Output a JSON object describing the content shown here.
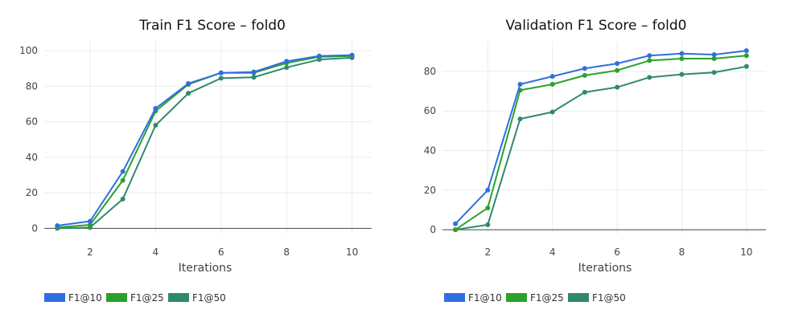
{
  "chart_data": [
    {
      "type": "line",
      "title": "Train F1 Score – fold0",
      "xlabel": "Iterations",
      "ylabel": "",
      "x": [
        1,
        2,
        3,
        4,
        5,
        6,
        7,
        8,
        9,
        10
      ],
      "xticks": [
        2,
        4,
        6,
        8,
        10
      ],
      "xlim": [
        0.6,
        10.6
      ],
      "ylim": [
        -3,
        105
      ],
      "yticks": [
        0,
        20,
        40,
        60,
        80,
        100
      ],
      "grid": true,
      "legend_position": "bottom-left",
      "series": [
        {
          "name": "F1@10",
          "color": "#2f6fe0",
          "values": [
            1.5,
            4,
            32,
            67.5,
            81.5,
            87.5,
            88,
            94,
            97,
            97.5
          ]
        },
        {
          "name": "F1@25",
          "color": "#2ca02c",
          "values": [
            0.5,
            2,
            27,
            66,
            81,
            87.5,
            87.5,
            93,
            96.5,
            97
          ]
        },
        {
          "name": "F1@50",
          "color": "#2e8b6a",
          "values": [
            0,
            0.5,
            16.5,
            58,
            76,
            84.5,
            85,
            90.5,
            95,
            96
          ]
        }
      ]
    },
    {
      "type": "line",
      "title": "Validation F1 Score – fold0",
      "xlabel": "Iterations",
      "ylabel": "",
      "x": [
        1,
        2,
        3,
        4,
        5,
        6,
        7,
        8,
        9,
        10
      ],
      "xticks": [
        2,
        4,
        6,
        8,
        10
      ],
      "xlim": [
        0.6,
        10.6
      ],
      "ylim": [
        -2,
        95
      ],
      "yticks": [
        0,
        20,
        40,
        60,
        80
      ],
      "grid": true,
      "legend_position": "bottom-left",
      "series": [
        {
          "name": "F1@10",
          "color": "#2f6fe0",
          "values": [
            3,
            20,
            73.5,
            77.5,
            81.5,
            84,
            88,
            89,
            88.5,
            90.5
          ]
        },
        {
          "name": "F1@25",
          "color": "#2ca02c",
          "values": [
            0,
            11,
            70.5,
            73.5,
            78,
            80.5,
            85.5,
            86.5,
            86.5,
            88
          ]
        },
        {
          "name": "F1@50",
          "color": "#2e8b6a",
          "values": [
            0,
            2.5,
            56,
            59.5,
            69.5,
            72,
            77,
            78.5,
            79.5,
            82.5
          ]
        }
      ]
    }
  ]
}
